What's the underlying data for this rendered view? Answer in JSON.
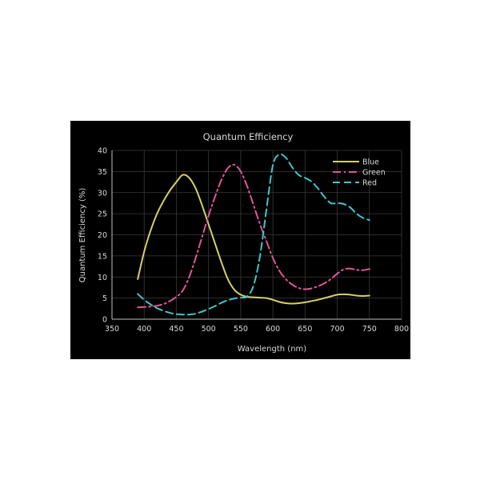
{
  "chart_data": {
    "type": "line",
    "title": "Quantum Efficiency",
    "xlabel": "Wavelength (nm)",
    "ylabel": "Quantum Efficiency (%)",
    "xlim": [
      350,
      800
    ],
    "ylim": [
      0,
      40
    ],
    "xticks": [
      350,
      400,
      450,
      500,
      550,
      600,
      650,
      700,
      750,
      800
    ],
    "yticks": [
      0,
      5,
      10,
      15,
      20,
      25,
      30,
      35,
      40
    ],
    "grid": true,
    "legend_position": "top-right",
    "background": "#000000",
    "series": [
      {
        "name": "Blue",
        "color": "#d6cf6a",
        "dash": "solid",
        "x": [
          390,
          400,
          410,
          420,
          430,
          440,
          450,
          460,
          470,
          480,
          490,
          500,
          510,
          520,
          530,
          540,
          550,
          560,
          570,
          580,
          590,
          600,
          610,
          620,
          630,
          640,
          650,
          660,
          670,
          680,
          690,
          700,
          710,
          720,
          730,
          740,
          750
        ],
        "y": [
          9.5,
          16,
          21,
          25,
          28,
          30.5,
          32.5,
          34.2,
          33.5,
          31,
          27,
          22.5,
          18,
          13.5,
          9.5,
          7,
          5.8,
          5.3,
          5.2,
          5.1,
          5,
          4.6,
          4.1,
          3.8,
          3.7,
          3.8,
          4,
          4.3,
          4.6,
          5,
          5.4,
          5.8,
          5.9,
          5.8,
          5.6,
          5.5,
          5.6
        ]
      },
      {
        "name": "Green",
        "color": "#e0559a",
        "dash": "dashdot",
        "x": [
          390,
          400,
          410,
          420,
          430,
          440,
          450,
          460,
          470,
          480,
          490,
          500,
          510,
          520,
          530,
          540,
          550,
          560,
          570,
          580,
          590,
          600,
          610,
          620,
          630,
          640,
          650,
          660,
          670,
          680,
          690,
          700,
          710,
          720,
          730,
          740,
          750
        ],
        "y": [
          2.8,
          2.9,
          3,
          3.2,
          3.6,
          4.3,
          5.3,
          6.8,
          10,
          14.5,
          19.5,
          24.5,
          29,
          33,
          35.8,
          36.6,
          35,
          31.5,
          27,
          22.5,
          18.5,
          14.5,
          11.5,
          9.5,
          8.2,
          7.4,
          7.1,
          7.3,
          7.8,
          8.5,
          9.5,
          10.8,
          11.8,
          12,
          11.7,
          11.6,
          11.9
        ]
      },
      {
        "name": "Red",
        "color": "#3fc7cc",
        "dash": "dashed",
        "x": [
          390,
          400,
          410,
          420,
          430,
          440,
          450,
          460,
          470,
          480,
          490,
          500,
          510,
          520,
          530,
          540,
          550,
          560,
          570,
          580,
          590,
          600,
          610,
          620,
          630,
          640,
          650,
          660,
          670,
          680,
          690,
          700,
          710,
          720,
          730,
          740,
          750
        ],
        "y": [
          6,
          4.6,
          3.5,
          2.6,
          2,
          1.5,
          1.2,
          1.1,
          1.1,
          1.3,
          1.8,
          2.4,
          3.1,
          3.9,
          4.5,
          4.9,
          5.1,
          5.4,
          8,
          15,
          26,
          36.5,
          39,
          38.3,
          36,
          34.2,
          33.5,
          32.6,
          31,
          29,
          27.5,
          27.5,
          27.3,
          26.5,
          25,
          24,
          23.5
        ]
      }
    ]
  }
}
